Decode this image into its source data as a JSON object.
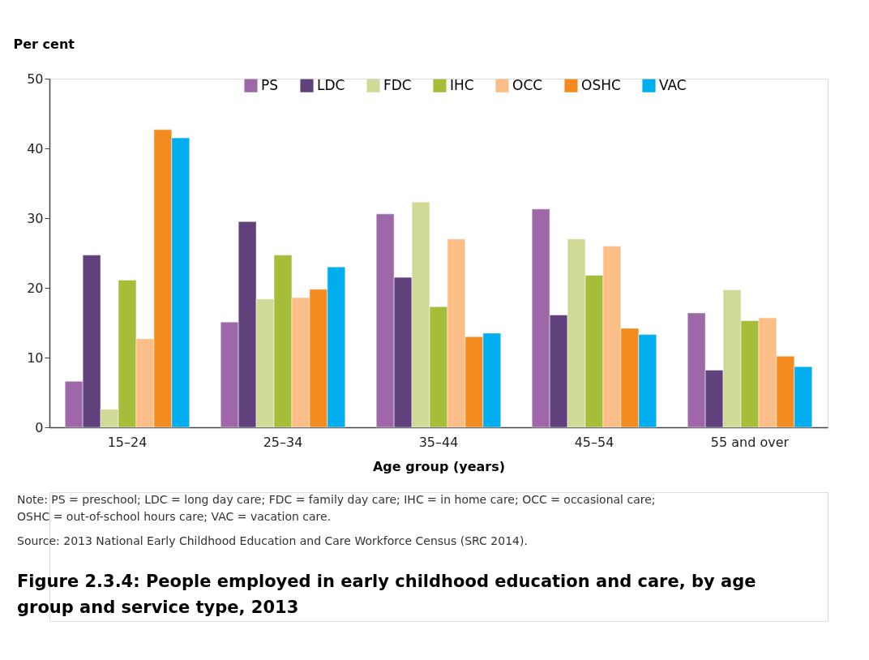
{
  "chart_data": {
    "type": "bar",
    "title": "Figure 2.3.4: People employed in early childhood education and care, by age group and service type, 2013",
    "xlabel": "Age group (years)",
    "ylabel": "Per cent",
    "categories": [
      "15–24",
      "25–34",
      "35–44",
      "45–54",
      "55 and over"
    ],
    "series": [
      {
        "name": "PS",
        "color": "#9e67a8",
        "values": [
          6.6,
          15.1,
          30.6,
          31.3,
          16.4
        ]
      },
      {
        "name": "LDC",
        "color": "#61417b",
        "values": [
          24.7,
          29.5,
          21.5,
          16.1,
          8.2
        ]
      },
      {
        "name": "FDC",
        "color": "#d1d996",
        "values": [
          2.6,
          18.4,
          32.3,
          27.0,
          19.7
        ]
      },
      {
        "name": "IHC",
        "color": "#a6bd3a",
        "values": [
          21.1,
          24.7,
          17.3,
          21.8,
          15.3
        ]
      },
      {
        "name": "OCC",
        "color": "#fbbe87",
        "values": [
          12.7,
          18.6,
          27.0,
          26.0,
          15.7
        ]
      },
      {
        "name": "OSHC",
        "color": "#f48b20",
        "values": [
          42.7,
          19.8,
          13.0,
          14.2,
          10.2
        ]
      },
      {
        "name": "VAC",
        "color": "#00adee",
        "values": [
          41.5,
          23.0,
          13.5,
          13.3,
          8.7
        ]
      }
    ],
    "ylim": [
      0,
      50
    ],
    "yticks": [
      0,
      10,
      20,
      30,
      40,
      50
    ],
    "grid": false,
    "legend": "top",
    "annotations": [
      "Note: PS = preschool; LDC = long day care; FDC = family day care; IHC = in home care; OCC = occasional care; OSHC = out-of-school hours care; VAC = vacation care.",
      "Source: 2013 National Early Childhood Education and Care Workforce Census (SRC 2014)."
    ]
  }
}
